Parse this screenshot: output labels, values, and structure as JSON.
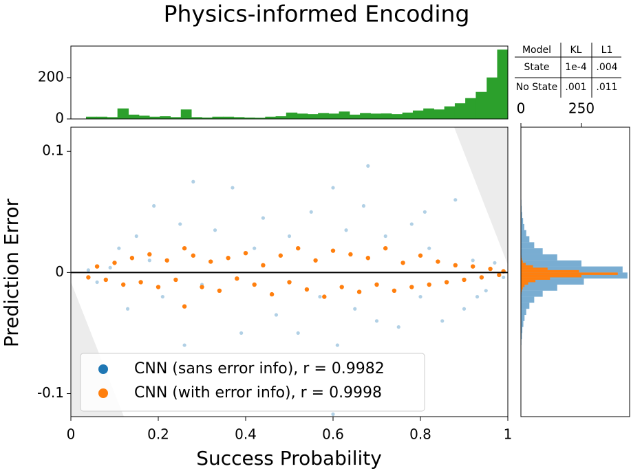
{
  "chart_data": [
    {
      "type": "scatter",
      "title": "Physics-informed Encoding",
      "x_label": "Success Probability",
      "y_label": "Prediction Error",
      "xlim": [
        0,
        1
      ],
      "ylim": [
        -0.119,
        0.12
      ],
      "xticks": [
        0,
        0.2,
        0.4,
        0.6,
        0.8,
        1
      ],
      "yticks": [
        -0.1,
        0,
        0.1
      ],
      "legend": "lower left",
      "series": [
        {
          "name": "CNN (sans error info), r = 0.9982",
          "color": "#1f77b4",
          "x": [
            0.04,
            0.06,
            0.09,
            0.11,
            0.13,
            0.15,
            0.18,
            0.19,
            0.21,
            0.25,
            0.26,
            0.28,
            0.3,
            0.33,
            0.37,
            0.39,
            0.42,
            0.44,
            0.47,
            0.5,
            0.52,
            0.55,
            0.57,
            0.6,
            0.61,
            0.63,
            0.65,
            0.67,
            0.68,
            0.7,
            0.72,
            0.75,
            0.78,
            0.8,
            0.82,
            0.85,
            0.88,
            0.9,
            0.92,
            0.95,
            0.97,
            0.99,
            0.6,
            0.81,
            0.93
          ],
          "values": [
            0.002,
            -0.008,
            0.004,
            0.02,
            -0.03,
            0.03,
            0.01,
            0.055,
            -0.02,
            0.04,
            -0.06,
            0.075,
            -0.01,
            0.035,
            0.07,
            -0.05,
            0.02,
            0.045,
            -0.035,
            0.03,
            -0.05,
            0.05,
            -0.02,
            0.07,
            -0.06,
            0.035,
            -0.03,
            0.055,
            0.088,
            -0.04,
            0.03,
            -0.045,
            0.04,
            -0.02,
            0.02,
            -0.04,
            0.06,
            -0.03,
            0.01,
            -0.015,
            0.008,
            -0.004,
            -0.117,
            0.05,
            -0.02
          ]
        },
        {
          "name": "CNN (with error info), r = 0.9998",
          "color": "#ff7f0e",
          "x": [
            0.04,
            0.06,
            0.08,
            0.1,
            0.12,
            0.14,
            0.16,
            0.18,
            0.2,
            0.22,
            0.24,
            0.26,
            0.28,
            0.3,
            0.32,
            0.34,
            0.36,
            0.38,
            0.4,
            0.42,
            0.44,
            0.46,
            0.48,
            0.5,
            0.52,
            0.54,
            0.56,
            0.58,
            0.6,
            0.62,
            0.64,
            0.66,
            0.68,
            0.7,
            0.72,
            0.74,
            0.76,
            0.78,
            0.8,
            0.82,
            0.84,
            0.86,
            0.88,
            0.9,
            0.92,
            0.94,
            0.96,
            0.98,
            0.99,
            0.26
          ],
          "values": [
            -0.004,
            0.005,
            -0.006,
            0.008,
            -0.01,
            0.012,
            -0.008,
            0.015,
            -0.012,
            0.01,
            -0.006,
            -0.028,
            0.014,
            -0.012,
            0.009,
            -0.015,
            0.012,
            -0.005,
            0.016,
            -0.01,
            0.006,
            -0.018,
            0.014,
            -0.008,
            0.02,
            -0.014,
            0.01,
            -0.02,
            0.018,
            -0.012,
            0.015,
            -0.016,
            0.012,
            -0.01,
            0.02,
            -0.015,
            0.008,
            -0.012,
            0.014,
            -0.01,
            0.009,
            -0.008,
            0.006,
            -0.006,
            0.005,
            -0.004,
            0.003,
            -0.002,
            0.001,
            0.02
          ]
        }
      ]
    },
    {
      "type": "histogram",
      "color": "#2ca02c",
      "xlim": [
        0,
        1
      ],
      "ylim": [
        0,
        353
      ],
      "yticks": [
        0,
        200
      ],
      "series": [
        {
          "bins": [
            0.035,
            0.059,
            0.083,
            0.107,
            0.132,
            0.156,
            0.18,
            0.204,
            0.228,
            0.252,
            0.276,
            0.3,
            0.324,
            0.349,
            0.373,
            0.397,
            0.421,
            0.445,
            0.469,
            0.493,
            0.518,
            0.542,
            0.566,
            0.59,
            0.614,
            0.638,
            0.662,
            0.686,
            0.71,
            0.734,
            0.759,
            0.783,
            0.807,
            0.831,
            0.855,
            0.879,
            0.903,
            0.927,
            0.952,
            0.976,
            1.0
          ],
          "color": "#2ca02c",
          "values": [
            10,
            10,
            8,
            50,
            20,
            15,
            10,
            12,
            8,
            45,
            8,
            6,
            10,
            10,
            8,
            6,
            5,
            10,
            12,
            30,
            25,
            22,
            28,
            25,
            35,
            20,
            28,
            25,
            26,
            22,
            30,
            40,
            50,
            45,
            60,
            75,
            100,
            130,
            200,
            335
          ]
        }
      ]
    },
    {
      "type": "histogram",
      "orientation": "horizontal",
      "xlim": [
        0,
        449
      ],
      "ylim": [
        -0.119,
        0.12
      ],
      "xticks": [
        0,
        250
      ],
      "series": [
        {
          "color": "#1f77b4",
          "bins": [
            -0.06,
            -0.055,
            -0.05,
            -0.045,
            -0.04,
            -0.035,
            -0.03,
            -0.025,
            -0.02,
            -0.015,
            -0.01,
            -0.005,
            0,
            0.005,
            0.01,
            0.015,
            0.02,
            0.025,
            0.03,
            0.035,
            0.04,
            0.045,
            0.05,
            0.055,
            0.06
          ],
          "values": [
            2,
            4,
            6,
            10,
            15,
            22,
            35,
            55,
            90,
            150,
            260,
            440,
            420,
            250,
            150,
            90,
            55,
            35,
            22,
            14,
            9,
            5,
            3,
            2
          ]
        },
        {
          "color": "#ff7f0e",
          "bins": [
            -0.02,
            -0.018,
            -0.016,
            -0.014,
            -0.012,
            -0.01,
            -0.008,
            -0.006,
            -0.004,
            -0.002,
            0,
            0.002,
            0.004,
            0.006,
            0.008,
            0.01,
            0.012,
            0.014,
            0.016
          ],
          "values": [
            1,
            2,
            4,
            8,
            15,
            30,
            60,
            120,
            250,
            400,
            240,
            110,
            50,
            20,
            8,
            4,
            2,
            1
          ]
        }
      ]
    },
    {
      "type": "table",
      "header": [
        "Model",
        "KL",
        "L1"
      ],
      "rows": [
        [
          "State",
          "1e-4",
          ".004"
        ],
        [
          "No State",
          ".001",
          ".011"
        ]
      ]
    }
  ]
}
